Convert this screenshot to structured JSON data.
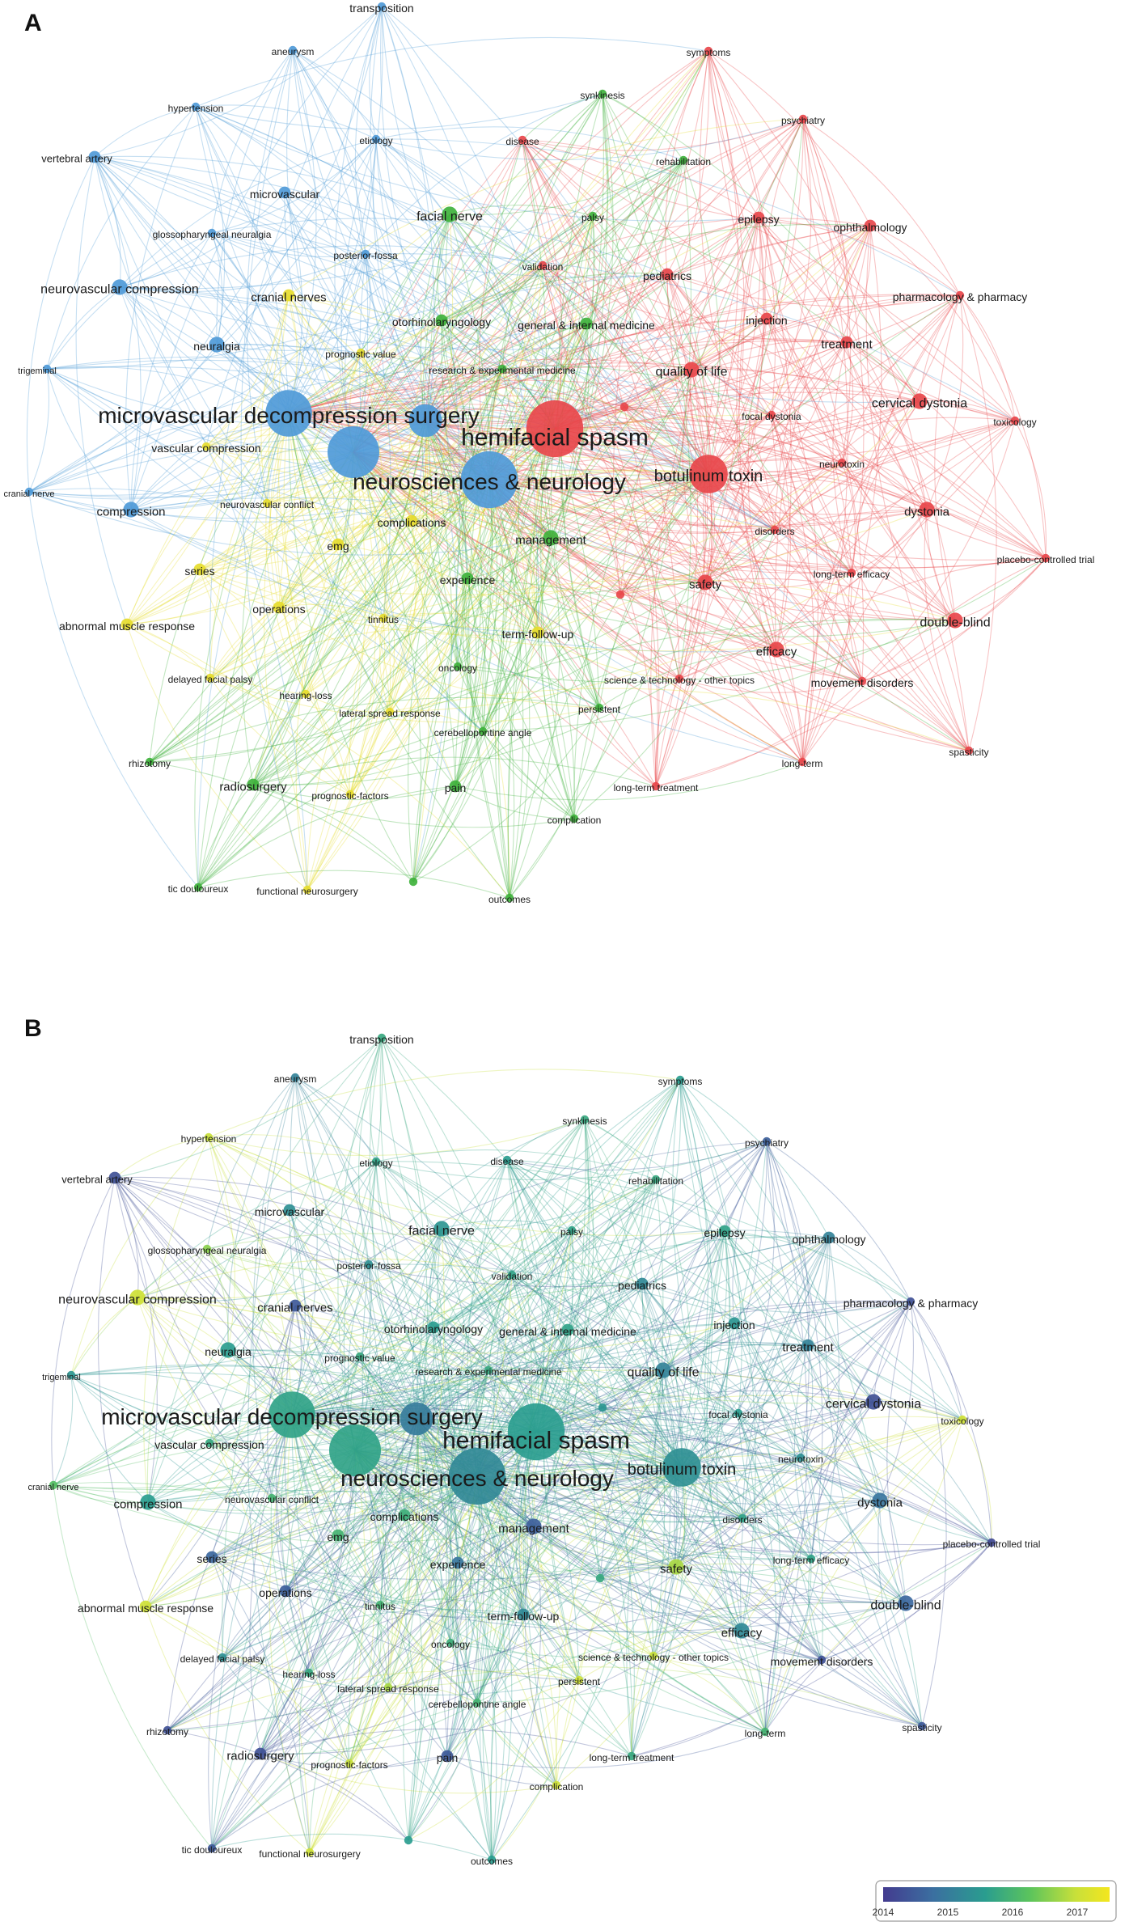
{
  "panels": [
    {
      "label": "A",
      "coloring": "cluster"
    },
    {
      "label": "B",
      "coloring": "average publication year"
    }
  ],
  "palette": {
    "cluster_colors": {
      "red": "#e8474b",
      "blue": "#4f9ad8",
      "green": "#3fb23c",
      "yellow": "#e6dc2e"
    },
    "year_gradient": [
      "#433b8f",
      "#3b6fa0",
      "#2a9d8f",
      "#5cc45c",
      "#c8e03a",
      "#f4e61e"
    ]
  },
  "legend": {
    "ticks": [
      "2014",
      "2015",
      "2016",
      "2017"
    ],
    "range": [
      2014,
      2017.5
    ]
  },
  "nodes": [
    {
      "id": "transposition",
      "label": "transposition",
      "cluster": "blue",
      "weight": 1,
      "year": 2015.6
    },
    {
      "id": "aneurysm",
      "label": "aneurysm",
      "cluster": "blue",
      "weight": 1,
      "year": 2015.0
    },
    {
      "id": "hypertension",
      "label": "hypertension",
      "cluster": "blue",
      "weight": 1,
      "year": 2016.8
    },
    {
      "id": "etiology",
      "label": "etiology",
      "cluster": "blue",
      "weight": 1,
      "year": 2015.5
    },
    {
      "id": "vertebral_artery",
      "label": "vertebral artery",
      "cluster": "blue",
      "weight": 2,
      "year": 2014.3
    },
    {
      "id": "microvascular",
      "label": "microvascular",
      "cluster": "blue",
      "weight": 2,
      "year": 2015.2
    },
    {
      "id": "glossopharyngeal",
      "label": "glossopharyngeal neuralgia",
      "cluster": "blue",
      "weight": 1,
      "year": 2016.4
    },
    {
      "id": "posterior_fossa",
      "label": "posterior-fossa",
      "cluster": "blue",
      "weight": 1,
      "year": 2015.2
    },
    {
      "id": "nvc",
      "label": "neurovascular compression",
      "cluster": "blue",
      "weight": 3,
      "year": 2016.9
    },
    {
      "id": "trigeminal",
      "label": "trigeminal",
      "cluster": "blue",
      "weight": 1,
      "year": 2015.3
    },
    {
      "id": "neuralgia",
      "label": "neuralgia",
      "cluster": "blue",
      "weight": 3,
      "year": 2015.4
    },
    {
      "id": "mvd",
      "label": "microvascular decompression surgery",
      "cluster": "blue",
      "weight": 9,
      "year": 2015.5
    },
    {
      "id": "neuro",
      "label": "neurosciences & neurology",
      "cluster": "blue",
      "weight": 11,
      "year": 2015.1
    },
    {
      "id": "surgery_node",
      "label": "",
      "cluster": "blue",
      "weight": 10,
      "year": 2015.5
    },
    {
      "id": "blue_small_big",
      "label": "",
      "cluster": "blue",
      "weight": 6,
      "year": 2014.9
    },
    {
      "id": "cranial_nerve",
      "label": "cranial nerve",
      "cluster": "blue",
      "weight": 1,
      "year": 2016.0
    },
    {
      "id": "compression",
      "label": "compression",
      "cluster": "blue",
      "weight": 3,
      "year": 2015.4
    },
    {
      "id": "cranial_nerves",
      "label": "cranial nerves",
      "cluster": "yellow",
      "weight": 2,
      "year": 2014.4
    },
    {
      "id": "prognostic_value",
      "label": "prognostic value",
      "cluster": "yellow",
      "weight": 1,
      "year": 2015.6
    },
    {
      "id": "vascular_compression",
      "label": "vascular compression",
      "cluster": "yellow",
      "weight": 1,
      "year": 2015.6
    },
    {
      "id": "neurovascular_conflict",
      "label": "neurovascular conflict",
      "cluster": "yellow",
      "weight": 1,
      "year": 2015.8
    },
    {
      "id": "emg",
      "label": "emg",
      "cluster": "yellow",
      "weight": 2,
      "year": 2015.8
    },
    {
      "id": "complications",
      "label": "complications",
      "cluster": "yellow",
      "weight": 2,
      "year": 2015.7
    },
    {
      "id": "series",
      "label": "series",
      "cluster": "yellow",
      "weight": 2,
      "year": 2014.6
    },
    {
      "id": "amr",
      "label": "abnormal muscle response",
      "cluster": "yellow",
      "weight": 2,
      "year": 2016.9
    },
    {
      "id": "operations",
      "label": "operations",
      "cluster": "yellow",
      "weight": 2,
      "year": 2014.5
    },
    {
      "id": "tinnitus",
      "label": "tinnitus",
      "cluster": "yellow",
      "weight": 1,
      "year": 2015.8
    },
    {
      "id": "delayed_facial_palsy",
      "label": "delayed facial palsy",
      "cluster": "yellow",
      "weight": 1,
      "year": 2015.2
    },
    {
      "id": "hearing_loss",
      "label": "hearing-loss",
      "cluster": "yellow",
      "weight": 1,
      "year": 2015.6
    },
    {
      "id": "lateral_spread",
      "label": "lateral spread response",
      "cluster": "yellow",
      "weight": 1,
      "year": 2016.6
    },
    {
      "id": "prognostic_factors",
      "label": "prognostic-factors",
      "cluster": "yellow",
      "weight": 1,
      "year": 2016.8
    },
    {
      "id": "functional_neurosurgery",
      "label": "functional neurosurgery",
      "cluster": "yellow",
      "weight": 1,
      "year": 2016.9
    },
    {
      "id": "term_follow_up",
      "label": "term-follow-up",
      "cluster": "yellow",
      "weight": 2,
      "year": 2015.1
    },
    {
      "id": "facial_nerve",
      "label": "facial nerve",
      "cluster": "green",
      "weight": 3,
      "year": 2015.3
    },
    {
      "id": "synkinesis",
      "label": "synkinesis",
      "cluster": "green",
      "weight": 1,
      "year": 2015.6
    },
    {
      "id": "rehabilitation",
      "label": "rehabilitation",
      "cluster": "green",
      "weight": 1,
      "year": 2015.6
    },
    {
      "id": "palsy",
      "label": "palsy",
      "cluster": "green",
      "weight": 1,
      "year": 2015.5
    },
    {
      "id": "otorhinolaryngology",
      "label": "otorhinolaryngology",
      "cluster": "green",
      "weight": 2,
      "year": 2015.4
    },
    {
      "id": "general_internal",
      "label": "general & internal medicine",
      "cluster": "green",
      "weight": 2,
      "year": 2015.5
    },
    {
      "id": "research_exp",
      "label": "research & experimental medicine",
      "cluster": "green",
      "weight": 1,
      "year": 2015.6
    },
    {
      "id": "management",
      "label": "management",
      "cluster": "green",
      "weight": 3,
      "year": 2014.5
    },
    {
      "id": "experience",
      "label": "experience",
      "cluster": "green",
      "weight": 2,
      "year": 2014.8
    },
    {
      "id": "oncology",
      "label": "oncology",
      "cluster": "green",
      "weight": 1,
      "year": 2015.7
    },
    {
      "id": "persistent",
      "label": "persistent",
      "cluster": "green",
      "weight": 1,
      "year": 2016.9
    },
    {
      "id": "cerebellopontine",
      "label": "cerebellopontine angle",
      "cluster": "green",
      "weight": 1,
      "year": 2015.8
    },
    {
      "id": "pain",
      "label": "pain",
      "cluster": "green",
      "weight": 2,
      "year": 2014.4
    },
    {
      "id": "complication",
      "label": "complication",
      "cluster": "green",
      "weight": 1,
      "year": 2016.9
    },
    {
      "id": "outcomes",
      "label": "outcomes",
      "cluster": "green",
      "weight": 1,
      "year": 2015.4
    },
    {
      "id": "rhizotomy",
      "label": "rhizotomy",
      "cluster": "green",
      "weight": 1,
      "year": 2014.3
    },
    {
      "id": "radiosurgery",
      "label": "radiosurgery",
      "cluster": "green",
      "weight": 2,
      "year": 2014.3
    },
    {
      "id": "tic_douloureux",
      "label": "tic douloureux",
      "cluster": "green",
      "weight": 1,
      "year": 2014.4
    },
    {
      "id": "green_small",
      "label": "",
      "cluster": "green",
      "weight": 1,
      "year": 2015.4
    },
    {
      "id": "symptoms",
      "label": "symptoms",
      "cluster": "red",
      "weight": 1,
      "year": 2015.4
    },
    {
      "id": "psychiatry",
      "label": "psychiatry",
      "cluster": "red",
      "weight": 1,
      "year": 2014.5
    },
    {
      "id": "disease",
      "label": "disease",
      "cluster": "red",
      "weight": 1,
      "year": 2015.4
    },
    {
      "id": "epilepsy",
      "label": "epilepsy",
      "cluster": "red",
      "weight": 2,
      "year": 2015.5
    },
    {
      "id": "ophthalmology",
      "label": "ophthalmology",
      "cluster": "red",
      "weight": 2,
      "year": 2015.0
    },
    {
      "id": "validation",
      "label": "validation",
      "cluster": "red",
      "weight": 1,
      "year": 2015.5
    },
    {
      "id": "pediatrics",
      "label": "pediatrics",
      "cluster": "red",
      "weight": 2,
      "year": 2015.1
    },
    {
      "id": "pharmacology",
      "label": "pharmacology & pharmacy",
      "cluster": "red",
      "weight": 1,
      "year": 2014.3
    },
    {
      "id": "injection",
      "label": "injection",
      "cluster": "red",
      "weight": 2,
      "year": 2015.3
    },
    {
      "id": "treatment",
      "label": "treatment",
      "cluster": "red",
      "weight": 2,
      "year": 2015.0
    },
    {
      "id": "hfs",
      "label": "hemifacial spasm",
      "cluster": "red",
      "weight": 11,
      "year": 2015.4
    },
    {
      "id": "quality_of_life",
      "label": "quality of life",
      "cluster": "red",
      "weight": 3,
      "year": 2015.0
    },
    {
      "id": "focal_dystonia",
      "label": "focal dystonia",
      "cluster": "red",
      "weight": 1,
      "year": 2015.4
    },
    {
      "id": "cervical_dystonia",
      "label": "cervical dystonia",
      "cluster": "red",
      "weight": 3,
      "year": 2014.3
    },
    {
      "id": "toxicology",
      "label": "toxicology",
      "cluster": "red",
      "weight": 1,
      "year": 2016.9
    },
    {
      "id": "botulinum",
      "label": "botulinum toxin",
      "cluster": "red",
      "weight": 7,
      "year": 2015.2
    },
    {
      "id": "neurotoxin",
      "label": "neurotoxin",
      "cluster": "red",
      "weight": 1,
      "year": 2015.2
    },
    {
      "id": "dystonia",
      "label": "dystonia",
      "cluster": "red",
      "weight": 3,
      "year": 2014.8
    },
    {
      "id": "disorders",
      "label": "disorders",
      "cluster": "red",
      "weight": 1,
      "year": 2015.5
    },
    {
      "id": "long_term_efficacy",
      "label": "long-term efficacy",
      "cluster": "red",
      "weight": 1,
      "year": 2015.5
    },
    {
      "id": "placebo",
      "label": "placebo-controlled trial",
      "cluster": "red",
      "weight": 1,
      "year": 2014.2
    },
    {
      "id": "safety",
      "label": "safety",
      "cluster": "red",
      "weight": 3,
      "year": 2016.6
    },
    {
      "id": "double_blind",
      "label": "double-blind",
      "cluster": "red",
      "weight": 3,
      "year": 2014.6
    },
    {
      "id": "science_tech",
      "label": "science & technology - other topics",
      "cluster": "red",
      "weight": 1,
      "year": 2016.8
    },
    {
      "id": "efficacy",
      "label": "efficacy",
      "cluster": "red",
      "weight": 3,
      "year": 2015.1
    },
    {
      "id": "movement_disorders",
      "label": "movement disorders",
      "cluster": "red",
      "weight": 1,
      "year": 2014.3
    },
    {
      "id": "long_term",
      "label": "long-term",
      "cluster": "red",
      "weight": 1,
      "year": 2015.8
    },
    {
      "id": "spasticity",
      "label": "spasticity",
      "cluster": "red",
      "weight": 1,
      "year": 2014.4
    },
    {
      "id": "long_term_treatment",
      "label": "long-term treatment",
      "cluster": "red",
      "weight": 1,
      "year": 2015.6
    },
    {
      "id": "red_small_a",
      "label": "",
      "cluster": "red",
      "weight": 1,
      "year": 2015.3
    },
    {
      "id": "red_small_b",
      "label": "",
      "cluster": "red",
      "weight": 1,
      "year": 2015.6
    }
  ]
}
